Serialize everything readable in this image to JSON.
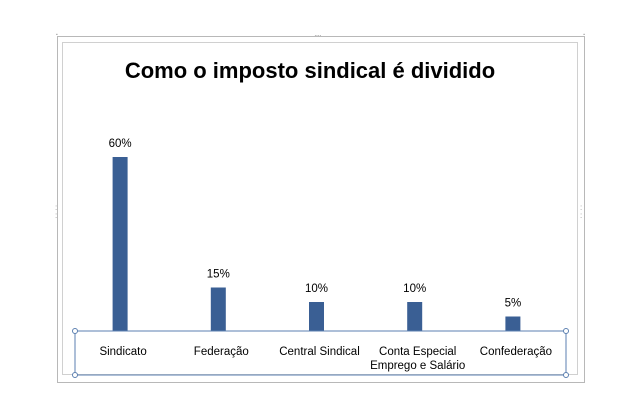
{
  "chart_data": {
    "type": "bar",
    "title": "Como o imposto sindical é dividido",
    "categories": [
      [
        "Sindicato"
      ],
      [
        "Federação"
      ],
      [
        "Central Sindical"
      ],
      [
        "Conta Especial",
        "Emprego e Salário"
      ],
      [
        "Confederação"
      ]
    ],
    "values": [
      60,
      15,
      10,
      10,
      5
    ],
    "data_labels": [
      "60%",
      "15%",
      "10%",
      "10%",
      "5%"
    ],
    "ylim": [
      0,
      60
    ],
    "grid": false,
    "legend": "none",
    "bar_color": "#3a5f94"
  }
}
